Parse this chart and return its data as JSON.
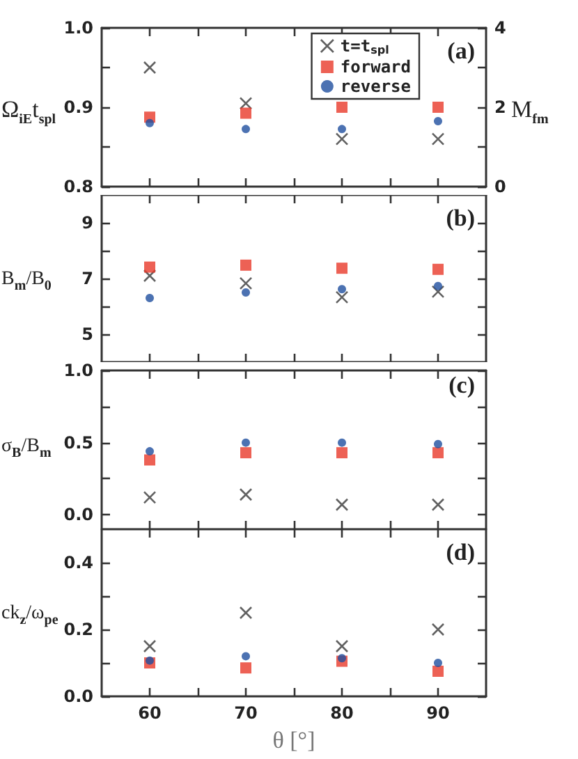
{
  "chart_data": [
    {
      "type": "scatter",
      "ylabel": "Ω$_{iE}$t$_{spl}$",
      "y2label": "M$_{fm}$",
      "annotations": [
        "(a)"
      ],
      "x": [
        60,
        70,
        80,
        90
      ],
      "xlim": [
        55,
        95
      ],
      "xticks": [
        60,
        {
          "value": 65,
          "label": null
        },
        70,
        {
          "value": 75,
          "label": null
        },
        80,
        {
          "value": 85,
          "label": null
        },
        90
      ],
      "ylim": [
        0.8,
        1.0
      ],
      "yticks": [
        {
          "value": 0.8,
          "label": "0.8"
        },
        {
          "value": 0.85,
          "label": null
        },
        {
          "value": 0.9,
          "label": "0.9"
        },
        {
          "value": 0.95,
          "label": null
        },
        {
          "value": 1.0,
          "label": "1.0"
        }
      ],
      "y2lim": [
        0,
        4
      ],
      "y2ticks": [
        0,
        {
          "value": 1,
          "label": null
        },
        2,
        {
          "value": 3,
          "label": null
        },
        4
      ],
      "tick_labels": "y",
      "grid": false,
      "legend": "top right",
      "series": [
        {
          "name": "t=t$_{spl}$",
          "color": "#3a3a3a",
          "marker": "cross",
          "values": [
            0.95,
            0.905,
            0.86,
            0.86
          ]
        },
        {
          "name": "forward",
          "color": "#e8392b",
          "marker": "square",
          "axis": "y2",
          "values": [
            1.75,
            1.85,
            2.0,
            2.0
          ]
        },
        {
          "name": "reverse",
          "color": "#1f4f9f",
          "marker": "circle",
          "axis": "y2",
          "values": [
            1.6,
            1.45,
            1.45,
            1.65
          ]
        }
      ]
    },
    {
      "type": "scatter",
      "ylabel": "B$_{m}$/B$_{0}$",
      "annotations": [
        "(b)"
      ],
      "x": [
        60,
        70,
        80,
        90
      ],
      "xlim": [
        55,
        95
      ],
      "xticks": [
        60,
        {
          "value": 65,
          "label": null
        },
        70,
        {
          "value": 75,
          "label": null
        },
        80,
        {
          "value": 85,
          "label": null
        },
        90
      ],
      "ylim": [
        4,
        10
      ],
      "yticks": [
        5,
        {
          "value": 6,
          "label": null
        },
        7,
        {
          "value": 8,
          "label": null
        },
        9
      ],
      "tick_labels": "y",
      "grid": false,
      "series": [
        {
          "color": "#3a3a3a",
          "marker": "cross",
          "values": [
            7.1,
            6.83,
            6.33,
            6.53
          ]
        },
        {
          "color": "#e8392b",
          "marker": "square",
          "values": [
            7.41,
            7.48,
            7.37,
            7.33
          ]
        },
        {
          "color": "#1f4f9f",
          "marker": "circle",
          "values": [
            6.3,
            6.5,
            6.62,
            6.73
          ]
        }
      ]
    },
    {
      "type": "scatter",
      "ylabel": "σ$_{B}$/B$_{m}$",
      "annotations": [
        "(c)"
      ],
      "x": [
        60,
        70,
        80,
        90
      ],
      "xlim": [
        55,
        95
      ],
      "xticks": [
        60,
        {
          "value": 65,
          "label": null
        },
        70,
        {
          "value": 75,
          "label": null
        },
        80,
        {
          "value": 85,
          "label": null
        },
        90
      ],
      "ylim": [
        -0.1,
        1.0
      ],
      "yticks": [
        {
          "value": 0,
          "label": "0.0"
        },
        {
          "value": 0.25,
          "label": null
        },
        0.5,
        {
          "value": 0.75,
          "label": null
        },
        {
          "value": 1,
          "label": "1.0"
        }
      ],
      "tick_labels": "y",
      "grid": false,
      "series": [
        {
          "color": "#3a3a3a",
          "marker": "cross",
          "values": [
            0.12,
            0.14,
            0.07,
            0.07
          ]
        },
        {
          "color": "#e8392b",
          "marker": "square",
          "values": [
            0.38,
            0.43,
            0.43,
            0.43
          ]
        },
        {
          "color": "#1f4f9f",
          "marker": "circle",
          "values": [
            0.44,
            0.5,
            0.5,
            0.49
          ]
        }
      ]
    },
    {
      "type": "scatter",
      "ylabel": "ck$_{z}$/ω$_{pe}$",
      "xlabel": "θ [°]",
      "annotations": [
        "(d)"
      ],
      "x": [
        60,
        70,
        80,
        90
      ],
      "xlim": [
        55,
        95
      ],
      "xticks": [
        60,
        {
          "value": 65,
          "label": null
        },
        70,
        {
          "value": 75,
          "label": null
        },
        80,
        {
          "value": 85,
          "label": null
        },
        90
      ],
      "ylim": [
        0,
        0.5
      ],
      "yticks": [
        {
          "value": 0,
          "label": "0.0"
        },
        {
          "value": 0.1,
          "label": null
        },
        0.2,
        {
          "value": 0.3,
          "label": null
        },
        0.4
      ],
      "grid": false,
      "series": [
        {
          "color": "#3a3a3a",
          "marker": "cross",
          "values": [
            0.15,
            0.25,
            0.15,
            0.2
          ]
        },
        {
          "color": "#e8392b",
          "marker": "square",
          "values": [
            0.1,
            0.085,
            0.105,
            0.075
          ]
        },
        {
          "color": "#1f4f9f",
          "marker": "circle",
          "values": [
            0.107,
            0.12,
            0.114,
            0.1
          ]
        }
      ]
    }
  ]
}
